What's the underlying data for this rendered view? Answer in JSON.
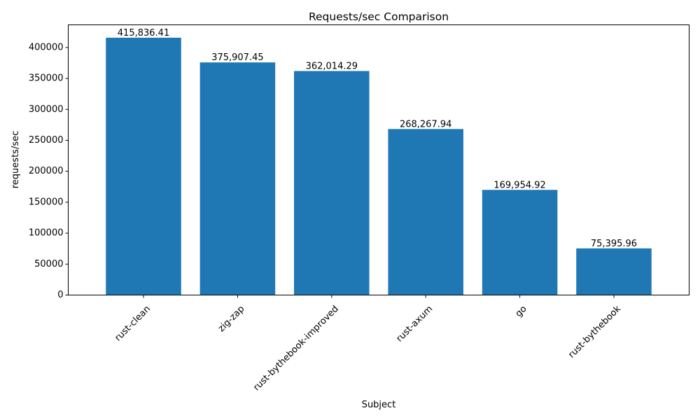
{
  "chart_data": {
    "type": "bar",
    "title": "Requests/sec Comparison",
    "xlabel": "Subject",
    "ylabel": "requests/sec",
    "categories": [
      "rust-clean",
      "zig-zap",
      "rust-bythebook-improved",
      "rust-axum",
      "go",
      "rust-bythebook"
    ],
    "values": [
      415836.41,
      375907.45,
      362014.29,
      268267.94,
      169954.92,
      75395.96
    ],
    "value_labels": [
      "415,836.41",
      "375,907.45",
      "362,014.29",
      "268,267.94",
      "169,954.92",
      "75,395.96"
    ],
    "yticks": [
      0,
      50000,
      100000,
      150000,
      200000,
      250000,
      300000,
      350000,
      400000
    ],
    "ytick_labels": [
      "0",
      "50000",
      "100000",
      "150000",
      "200000",
      "250000",
      "300000",
      "350000",
      "400000"
    ],
    "ylim": [
      0,
      436628.23
    ],
    "bar_color": "#1f77b4",
    "grid": false,
    "legend": "none",
    "xtick_rotation_deg": 45
  }
}
